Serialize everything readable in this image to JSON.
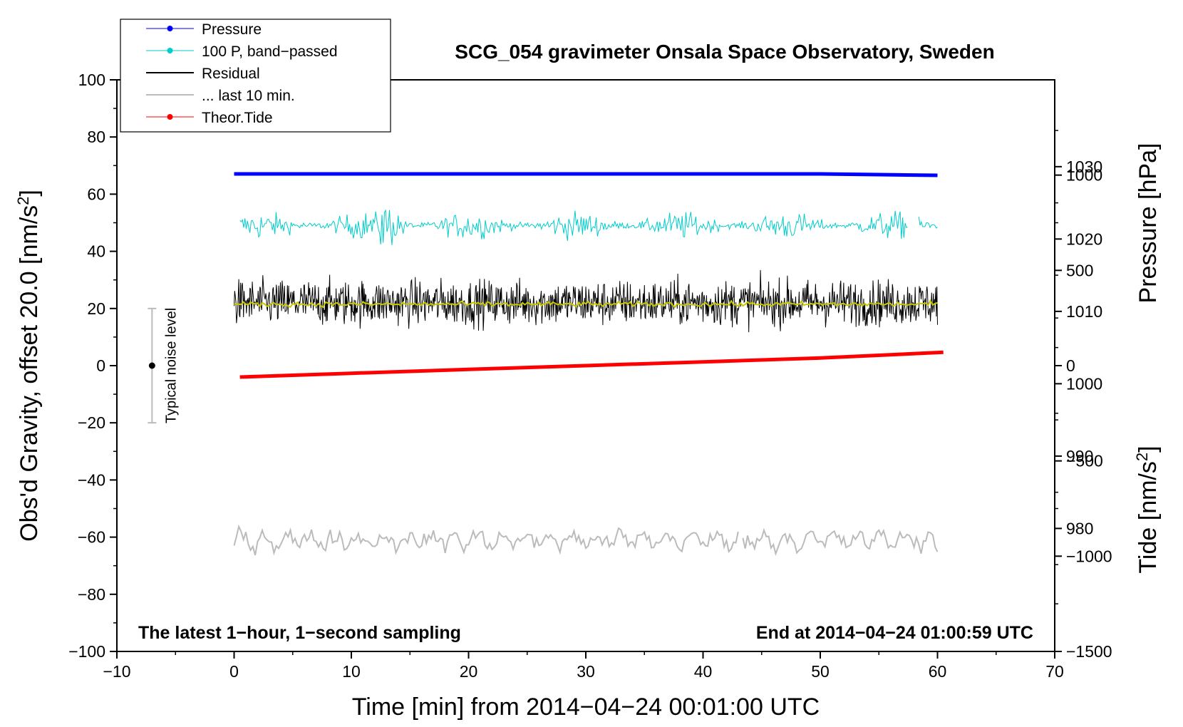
{
  "chart_data": {
    "type": "line",
    "title": "SCG_054 gravimeter Onsala Space Observatory, Sweden",
    "xlabel": "Time [min] from 2014−04−24 00:01:00 UTC",
    "ylabel_left": "Obs'd Gravity, offset 20.0 [nm/s",
    "ylabel_left_sup": "2",
    "ylabel_left_end": "]",
    "ylabel_pressure": "Pressure [hPa]",
    "ylabel_tide": "Tide [nm/s",
    "ylabel_tide_sup": "2",
    "ylabel_tide_end": "]",
    "xlim": [
      -10,
      70
    ],
    "ylim": [
      -100,
      100
    ],
    "pressure_lim": [
      963,
      1042
    ],
    "tide_lim": [
      -1500,
      1500
    ],
    "x_ticks": [
      -10,
      0,
      10,
      20,
      30,
      40,
      50,
      60,
      70
    ],
    "x_tick_labels": [
      "−10",
      "0",
      "10",
      "20",
      "30",
      "40",
      "50",
      "60",
      "70"
    ],
    "y_ticks": [
      -100,
      -80,
      -60,
      -40,
      -20,
      0,
      20,
      40,
      60,
      80,
      100
    ],
    "y_tick_labels": [
      "−100",
      "−80",
      "−60",
      "−40",
      "−20",
      "0",
      "20",
      "40",
      "60",
      "80",
      "100"
    ],
    "pressure_ticks": [
      980,
      990,
      1000,
      1010,
      1020,
      1030
    ],
    "pressure_tick_labels": [
      "980",
      "990",
      "1000",
      "1010",
      "1020",
      "1030"
    ],
    "tide_ticks": [
      -1500,
      -1000,
      -500,
      0,
      500,
      1000
    ],
    "tide_tick_labels": [
      "−1500",
      "−1000",
      "−500",
      "0",
      "500",
      "1000"
    ],
    "series": [
      {
        "name": "Pressure",
        "color": "#0000ff",
        "axis": "pressure",
        "x": [
          0,
          10,
          20,
          30,
          40,
          50,
          55,
          60
        ],
        "values": [
          1029,
          1029,
          1029,
          1029,
          1029,
          1029,
          1028.9,
          1028.8
        ]
      },
      {
        "name": "100 P, band−passed",
        "color": "#00cccc",
        "axis": "left",
        "x_range": [
          0.5,
          60
        ],
        "center": 49,
        "amplitude": 5,
        "gap_after_min": 57.5
      },
      {
        "name": "Residual",
        "color": "#000000",
        "axis": "left",
        "x_range": [
          0,
          60
        ],
        "center": 22,
        "amplitude": 7.5
      },
      {
        "name": "... last 10 min.",
        "color": "#bbbbbb",
        "axis": "left",
        "x_range": [
          0,
          60
        ],
        "center": -61,
        "amplitude": 3.5,
        "gap_after_min": 43
      },
      {
        "name": "Theor.Tide",
        "color": "#ff0000",
        "axis": "tide",
        "x": [
          0.5,
          10,
          20,
          30,
          40,
          50,
          60.5
        ],
        "values": [
          -60,
          -40,
          -20,
          0,
          20,
          40,
          70
        ]
      }
    ],
    "smoothed_residual": {
      "color": "#c8c800",
      "center": 21.5
    }
  },
  "legend": {
    "items": [
      {
        "label": "Pressure",
        "color": "#0000ff",
        "marker": true,
        "width": 1
      },
      {
        "label": "100 P, band−passed",
        "color": "#00cccc",
        "marker": true,
        "width": 1
      },
      {
        "label": "Residual",
        "color": "#000000",
        "marker": false,
        "width": 2
      },
      {
        "label": "... last 10 min.",
        "color": "#bbbbbb",
        "marker": false,
        "width": 2
      },
      {
        "label": "Theor.Tide",
        "color": "#ff0000",
        "marker": true,
        "width": 1
      }
    ]
  },
  "annotations": {
    "bottom_left": "The latest 1−hour, 1−second sampling",
    "bottom_right": "End at 2014−04−24 01:00:59 UTC",
    "noise_label": "Typical noise level",
    "noise_bar": {
      "x": -7,
      "center": 0,
      "low": -20,
      "high": 20
    }
  }
}
